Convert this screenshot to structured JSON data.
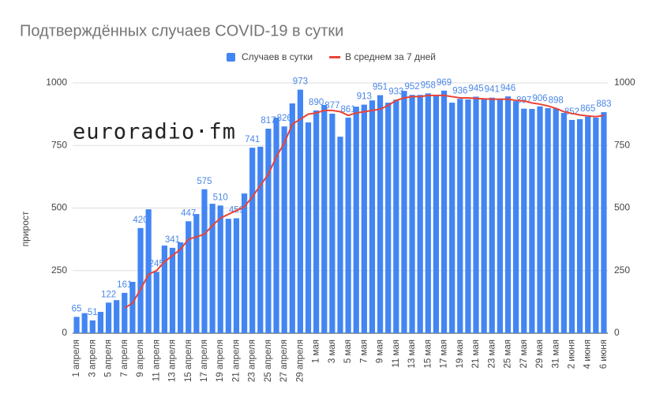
{
  "chart_data": {
    "type": "bar",
    "title": "Подтверждённых случаев COVID-19 в сутки",
    "y_label": "прирост",
    "watermark": "euroradio·fm",
    "legend_position": "top",
    "categories": [
      "1 апреля",
      null,
      "3 апреля",
      null,
      "5 апреля",
      null,
      "7 апреля",
      null,
      "9 апреля",
      null,
      "11 апреля",
      null,
      "13 апреля",
      null,
      "15 апреля",
      null,
      "17 апреля",
      null,
      "19 апреля",
      null,
      "21 апреля",
      null,
      "23 апреля",
      null,
      "25 апреля",
      null,
      "27 апреля",
      null,
      "29 апреля",
      null,
      "1 мая",
      null,
      "3 мая",
      null,
      "5 мая",
      null,
      "7 мая",
      null,
      "9 мая",
      null,
      "11 мая",
      null,
      "13 мая",
      null,
      "15 мая",
      null,
      "17 мая",
      null,
      "19 мая",
      null,
      "21 мая",
      null,
      "23 мая",
      null,
      "25 мая",
      null,
      "27 мая",
      null,
      "29 мая",
      null,
      "31 мая",
      null,
      "2 июня",
      null,
      "4 июня",
      null,
      "6 июня"
    ],
    "series": [
      {
        "name": "Случаев в сутки",
        "type": "bar",
        "color": "#4285f4",
        "values": [
          65,
          80,
          51,
          85,
          122,
          132,
          161,
          205,
          420,
          495,
          245,
          350,
          341,
          363,
          447,
          476,
          575,
          517,
          510,
          457,
          459,
          558,
          741,
          745,
          817,
          861,
          826,
          918,
          973,
          842,
          890,
          912,
          877,
          785,
          861,
          905,
          913,
          930,
          951,
          921,
          933,
          968,
          952,
          952,
          958,
          952,
          969,
          921,
          936,
          934,
          945,
          934,
          941,
          934,
          946,
          927,
          897,
          896,
          906,
          899,
          898,
          880,
          852,
          855,
          865,
          861,
          883
        ],
        "value_labels": [
          "65",
          null,
          "51",
          null,
          "122",
          null,
          "161",
          null,
          "420",
          null,
          "245",
          null,
          "341",
          null,
          "447",
          null,
          "575",
          null,
          "510",
          null,
          "459",
          null,
          "741",
          null,
          "817",
          null,
          "826",
          null,
          "973",
          null,
          "890",
          null,
          "877",
          null,
          "861",
          null,
          "913",
          null,
          "951",
          null,
          "933",
          null,
          "952",
          null,
          "958",
          null,
          "969",
          null,
          "936",
          null,
          "945",
          null,
          "941",
          null,
          "946",
          null,
          "897",
          null,
          "906",
          null,
          "898",
          null,
          "852",
          null,
          "865",
          null,
          "883"
        ]
      },
      {
        "name": "В среднем за 7 дней",
        "type": "line",
        "color": "#ea4335",
        "values": [
          null,
          null,
          null,
          null,
          null,
          null,
          100,
          120,
          175,
          235,
          250,
          285,
          310,
          335,
          375,
          385,
          395,
          430,
          460,
          475,
          490,
          505,
          545,
          590,
          635,
          705,
          760,
          835,
          855,
          875,
          880,
          890,
          890,
          885,
          870,
          880,
          885,
          890,
          895,
          910,
          930,
          940,
          945,
          945,
          950,
          950,
          950,
          945,
          940,
          940,
          938,
          936,
          935,
          935,
          935,
          930,
          928,
          920,
          915,
          908,
          898,
          885,
          878,
          872,
          868,
          865,
          870
        ]
      }
    ],
    "ylim": [
      0,
      1000
    ],
    "yticks": [
      0,
      250,
      500,
      750,
      1000
    ],
    "y2lim": [
      0,
      1000
    ],
    "y2ticks": [
      0,
      250,
      500,
      750,
      1000
    ],
    "grid": true
  }
}
